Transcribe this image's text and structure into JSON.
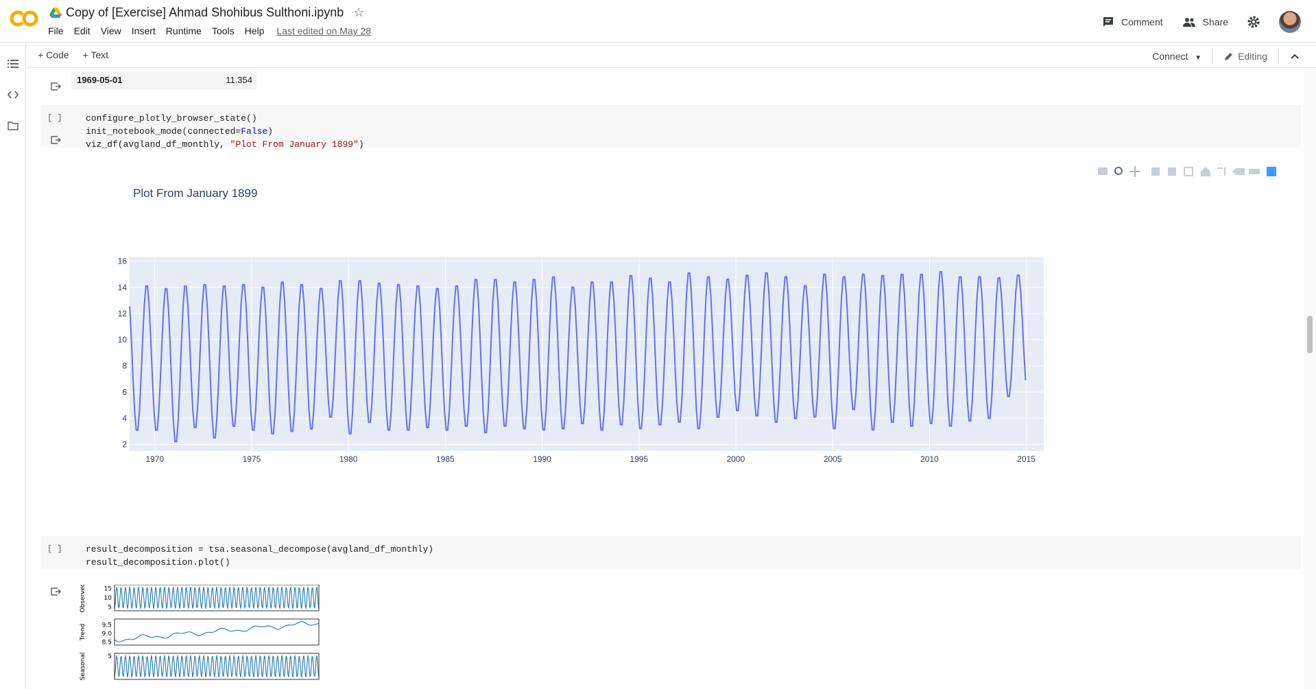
{
  "header": {
    "logo_text": "CO",
    "notebook_title": "Copy of [Exercise] Ahmad Shohibus Sulthoni.ipynb",
    "menu": [
      "File",
      "Edit",
      "View",
      "Insert",
      "Runtime",
      "Tools",
      "Help"
    ],
    "last_edited": "Last edited on May 28",
    "comment_label": "Comment",
    "share_label": "Share"
  },
  "toolbar": {
    "add_code": "+ Code",
    "add_text": "+ Text",
    "connect": "Connect",
    "editing": "Editing"
  },
  "table_fragment": {
    "key": "1969-05-01",
    "value": "11.354"
  },
  "cells": [
    {
      "gutter": "[ ]",
      "lines": [
        "configure_plotly_browser_state()",
        "init_notebook_mode(connected=False)",
        "viz_df(avgland_df_monthly, \"Plot From January 1899\")"
      ]
    },
    {
      "gutter": "[ ]",
      "lines": [
        "result_decomposition = tsa.seasonal_decompose(avgland_df_monthly)",
        "result_decomposition.plot()"
      ]
    }
  ],
  "chart_data": {
    "type": "line",
    "title": "Plot From January 1899",
    "xlabel": "",
    "ylabel": "",
    "x_range": [
      1968.7,
      2015.9
    ],
    "ylim": [
      1.5,
      16.3
    ],
    "x_ticks": [
      "1970",
      "1975",
      "1980",
      "1985",
      "1990",
      "1995",
      "2000",
      "2005",
      "2010",
      "2015"
    ],
    "y_ticks": [
      "2",
      "4",
      "6",
      "8",
      "10",
      "12",
      "14",
      "16"
    ],
    "grid": true,
    "series": [
      {
        "color": "#636efa",
        "yearly_peaks": [
          14.2,
          14.3,
          14.1,
          14.3,
          14.4,
          14.3,
          14.4,
          14.2,
          14.6,
          14.4,
          14.1,
          14.7,
          14.7,
          14.5,
          14.4,
          14.3,
          14.1,
          14.3,
          14.8,
          14.8,
          14.6,
          14.8,
          15.0,
          14.2,
          14.6,
          14.6,
          15.1,
          14.9,
          14.6,
          15.3,
          15.0,
          14.8,
          15.1,
          15.3,
          15.0,
          14.3,
          15.2,
          15.0,
          15.2,
          15.1,
          15.2,
          15.2,
          15.4,
          15.0,
          15.0,
          14.9,
          15.1
        ],
        "yearly_troughs": [
          2.1,
          2.9,
          2.9,
          2.0,
          3.1,
          2.3,
          3.2,
          2.9,
          2.6,
          2.8,
          3.0,
          3.9,
          2.6,
          3.5,
          2.9,
          2.9,
          3.1,
          2.9,
          3.2,
          2.7,
          3.2,
          3.0,
          2.9,
          3.0,
          3.4,
          2.9,
          3.3,
          3.0,
          3.3,
          3.5,
          3.0,
          3.9,
          4.4,
          4.0,
          3.5,
          3.8,
          3.9,
          3.0,
          4.5,
          2.9,
          3.5,
          3.2,
          3.4,
          3.2,
          3.6,
          3.8,
          5.5
        ]
      }
    ]
  },
  "decomposition": {
    "panels": [
      {
        "label": "Observed",
        "ticks": [
          "15",
          "10",
          "5"
        ]
      },
      {
        "label": "Trend",
        "ticks": [
          "9.5",
          "9.0",
          "8.5"
        ]
      },
      {
        "label": "Seasonal",
        "ticks": [
          "5"
        ]
      }
    ]
  }
}
